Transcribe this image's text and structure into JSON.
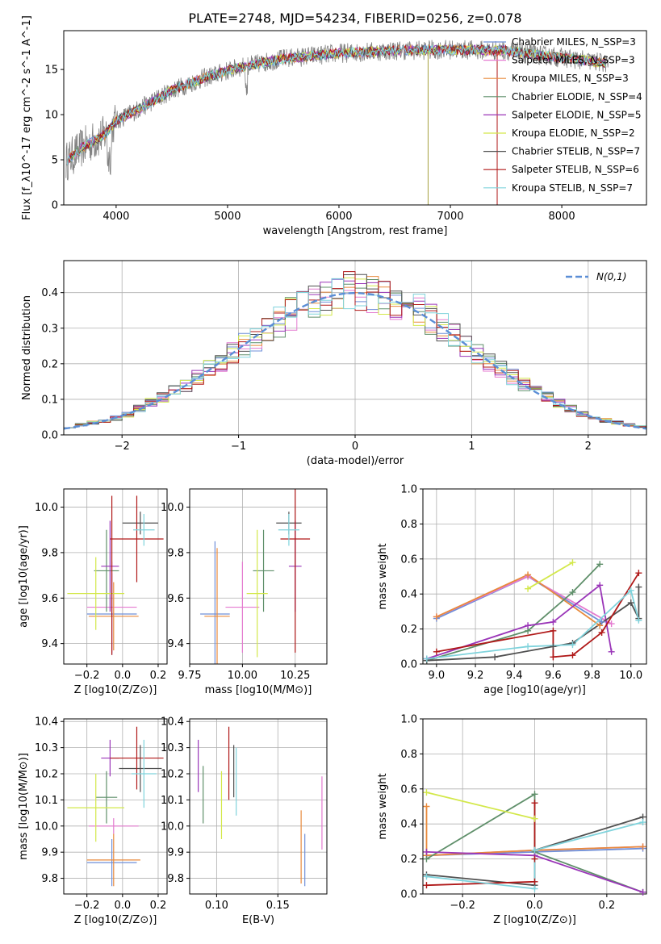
{
  "figure": {
    "title": "PLATE=2748, MJD=54234, FIBERID=0256, z=0.078"
  },
  "chart_data": [
    {
      "id": "spectrum",
      "type": "line",
      "xlabel": "wavelength [Angstrom, rest frame]",
      "ylabel": "Flux [f_λ10^-17 erg cm^-2 s^-1 A^-1]",
      "xlim": [
        3530,
        8760
      ],
      "ylim": [
        0,
        19.3
      ],
      "xticks": [
        4000,
        5000,
        6000,
        7000,
        8000
      ],
      "yticks": [
        0,
        5,
        10,
        15
      ],
      "grid": false,
      "legend_position": "right",
      "data_color": "#808080",
      "continuum": {
        "x": [
          3550,
          3700,
          3900,
          4000,
          4200,
          4500,
          4800,
          5100,
          5500,
          6000,
          6500,
          7000,
          7500,
          8000,
          8400
        ],
        "y": [
          4.8,
          6.4,
          7.8,
          9.3,
          10.6,
          12.7,
          14.1,
          15.2,
          16.2,
          16.8,
          17.1,
          17.2,
          17.1,
          16.3,
          15.7
        ]
      },
      "series": [
        {
          "name": "Chabrier MILES, N_SSP=3",
          "color": "#6f8fd8"
        },
        {
          "name": "Salpeter MILES, N_SSP=3",
          "color": "#e47ad0"
        },
        {
          "name": "Kroupa MILES, N_SSP=3",
          "color": "#e88a3c"
        },
        {
          "name": "Chabrier ELODIE, N_SSP=4",
          "color": "#5f8f6a"
        },
        {
          "name": "Salpeter ELODIE, N_SSP=5",
          "color": "#9a35b8"
        },
        {
          "name": "Kroupa ELODIE, N_SSP=2",
          "color": "#d3e84a"
        },
        {
          "name": "Chabrier STELIB, N_SSP=7",
          "color": "#505050"
        },
        {
          "name": "Salpeter STELIB, N_SSP=6",
          "color": "#b01818"
        },
        {
          "name": "Kroupa STELIB, N_SSP=7",
          "color": "#7fd3dc"
        }
      ]
    },
    {
      "id": "residuals",
      "type": "line",
      "xlabel": "(data-model)/error",
      "ylabel": "Normed distribution",
      "xlim": [
        -2.5,
        2.5
      ],
      "ylim": [
        0,
        0.49
      ],
      "xticks": [
        -2,
        -1,
        0,
        1,
        2
      ],
      "yticks": [
        0.0,
        0.1,
        0.2,
        0.3,
        0.4
      ],
      "grid": true,
      "legend_position": "top-right",
      "gaussian": {
        "name": "N(0,1)",
        "color": "#5b8ed6"
      },
      "histogram_envelope": {
        "x": [
          -2.5,
          -2.0,
          -1.5,
          -1.0,
          -0.5,
          0.0,
          0.5,
          1.0,
          1.5,
          2.0,
          2.5
        ],
        "y": [
          0.02,
          0.05,
          0.13,
          0.24,
          0.35,
          0.41,
          0.36,
          0.24,
          0.13,
          0.05,
          0.02
        ]
      }
    },
    {
      "id": "age-vs-Z",
      "type": "scatter",
      "xlabel": "Z [log10(Z/Z⊙)]",
      "ylabel": "age  [log10(age/yr)]",
      "xlim": [
        -0.33,
        0.25
      ],
      "ylim": [
        9.31,
        10.08
      ],
      "xticks": [
        -0.2,
        0.0,
        0.2
      ],
      "yticks": [
        9.4,
        9.6,
        9.8,
        10.0
      ],
      "grid": true,
      "points": [
        {
          "x": -0.06,
          "y": 9.53,
          "xerr": 0.14,
          "yerr": 0.18,
          "color": "#6f8fd8"
        },
        {
          "x": -0.06,
          "y": 9.56,
          "xerr": 0.14,
          "yerr": 0.2,
          "color": "#e47ad0"
        },
        {
          "x": -0.05,
          "y": 9.52,
          "xerr": 0.14,
          "yerr": 0.15,
          "color": "#e88a3c"
        },
        {
          "x": -0.09,
          "y": 9.72,
          "xerr": 0.07,
          "yerr": 0.18,
          "color": "#5f8f6a"
        },
        {
          "x": -0.07,
          "y": 9.74,
          "xerr": 0.05,
          "yerr": 0.2,
          "color": "#9a35b8"
        },
        {
          "x": -0.15,
          "y": 9.62,
          "xerr": 0.16,
          "yerr": 0.16,
          "color": "#d3e84a"
        },
        {
          "x": 0.1,
          "y": 9.93,
          "xerr": 0.1,
          "yerr": 0.05,
          "color": "#505050"
        },
        {
          "x": 0.08,
          "y": 9.86,
          "xerr": 0.15,
          "yerr": 0.19,
          "color": "#b01818"
        },
        {
          "x": 0.12,
          "y": 9.9,
          "xerr": 0.06,
          "yerr": 0.07,
          "color": "#7fd3dc"
        },
        {
          "x": -0.06,
          "y": 9.7,
          "xerr": 0.0,
          "yerr": 0.35,
          "color": "#b01818"
        }
      ]
    },
    {
      "id": "age-vs-mass",
      "type": "scatter",
      "xlabel": "mass [log10(M/M⊙)]",
      "ylabel": "",
      "xlim": [
        9.75,
        10.4
      ],
      "ylim": [
        9.31,
        10.08
      ],
      "xticks": [
        9.75,
        10.0,
        10.25
      ],
      "yticks": [
        9.4,
        9.6,
        9.8,
        10.0
      ],
      "grid": true,
      "points": [
        {
          "x": 9.87,
          "y": 9.53,
          "xerr": 0.07,
          "yerr": 0.32,
          "color": "#6f8fd8"
        },
        {
          "x": 10.0,
          "y": 9.56,
          "xerr": 0.08,
          "yerr": 0.2,
          "color": "#e47ad0"
        },
        {
          "x": 9.88,
          "y": 9.52,
          "xerr": 0.06,
          "yerr": 0.3,
          "color": "#e88a3c"
        },
        {
          "x": 10.1,
          "y": 9.72,
          "xerr": 0.05,
          "yerr": 0.18,
          "color": "#5f8f6a"
        },
        {
          "x": 10.25,
          "y": 9.74,
          "xerr": 0.03,
          "yerr": 0.2,
          "color": "#9a35b8"
        },
        {
          "x": 10.07,
          "y": 9.62,
          "xerr": 0.05,
          "yerr": 0.28,
          "color": "#d3e84a"
        },
        {
          "x": 10.22,
          "y": 9.93,
          "xerr": 0.06,
          "yerr": 0.05,
          "color": "#505050"
        },
        {
          "x": 10.25,
          "y": 9.86,
          "xerr": 0.07,
          "yerr": 0.5,
          "color": "#b01818"
        },
        {
          "x": 10.22,
          "y": 9.9,
          "xerr": 0.05,
          "yerr": 0.07,
          "color": "#7fd3dc"
        }
      ]
    },
    {
      "id": "weight-vs-age",
      "type": "line",
      "xlabel": "age  [log10(age/yr)]",
      "ylabel": "mass weight",
      "xlim": [
        8.93,
        10.08
      ],
      "ylim": [
        0,
        1
      ],
      "xticks": [
        9.0,
        9.2,
        9.4,
        9.6,
        9.8,
        10.0
      ],
      "yticks": [
        0.0,
        0.2,
        0.4,
        0.6,
        0.8,
        1.0
      ],
      "grid": true,
      "series": [
        {
          "color": "#6f8fd8",
          "x": [
            9.0,
            9.47,
            9.85
          ],
          "y": [
            0.26,
            0.5,
            0.24
          ]
        },
        {
          "color": "#e47ad0",
          "x": [
            9.0,
            9.47,
            9.9
          ],
          "y": [
            0.27,
            0.5,
            0.23
          ]
        },
        {
          "color": "#e88a3c",
          "x": [
            9.0,
            9.47,
            9.84
          ],
          "y": [
            0.27,
            0.51,
            0.22
          ]
        },
        {
          "color": "#5f8f6a",
          "x": [
            8.95,
            9.47,
            9.7,
            9.84
          ],
          "y": [
            0.02,
            0.19,
            0.41,
            0.57
          ]
        },
        {
          "color": "#9a35b8",
          "x": [
            8.95,
            9.47,
            9.6,
            9.84,
            9.9
          ],
          "y": [
            0.03,
            0.22,
            0.24,
            0.45,
            0.07
          ]
        },
        {
          "color": "#d3e84a",
          "x": [
            9.47,
            9.7
          ],
          "y": [
            0.43,
            0.58
          ]
        },
        {
          "color": "#505050",
          "x": [
            8.95,
            9.3,
            9.6,
            9.7,
            10.0,
            10.04,
            10.04
          ],
          "y": [
            0.02,
            0.04,
            0.1,
            0.12,
            0.35,
            0.26,
            0.44
          ]
        },
        {
          "color": "#b01818",
          "x": [
            9.0,
            9.6,
            9.6,
            9.7,
            9.85,
            10.04
          ],
          "y": [
            0.07,
            0.19,
            0.04,
            0.05,
            0.18,
            0.52
          ]
        },
        {
          "color": "#7fd3dc",
          "x": [
            8.95,
            9.47,
            9.7,
            10.0,
            10.04
          ],
          "y": [
            0.03,
            0.1,
            0.11,
            0.42,
            0.25
          ]
        }
      ]
    },
    {
      "id": "mass-vs-Z",
      "type": "scatter",
      "xlabel": "Z [log10(Z/Z⊙)]",
      "ylabel": "mass [log10(M/M⊙)]",
      "xlim": [
        -0.33,
        0.25
      ],
      "ylim": [
        9.74,
        10.41
      ],
      "xticks": [
        -0.2,
        0.0,
        0.2
      ],
      "yticks": [
        9.8,
        9.9,
        10.0,
        10.1,
        10.2,
        10.3,
        10.4
      ],
      "grid": true,
      "points": [
        {
          "x": -0.06,
          "y": 9.86,
          "xerr": 0.14,
          "yerr": 0.09,
          "color": "#6f8fd8"
        },
        {
          "x": -0.05,
          "y": 10.0,
          "xerr": 0.14,
          "yerr": 0.03,
          "color": "#e47ad0"
        },
        {
          "x": -0.05,
          "y": 9.87,
          "xerr": 0.15,
          "yerr": 0.1,
          "color": "#e88a3c"
        },
        {
          "x": -0.09,
          "y": 10.11,
          "xerr": 0.06,
          "yerr": 0.1,
          "color": "#5f8f6a"
        },
        {
          "x": -0.07,
          "y": 10.26,
          "xerr": 0.05,
          "yerr": 0.07,
          "color": "#9a35b8"
        },
        {
          "x": -0.15,
          "y": 10.07,
          "xerr": 0.16,
          "yerr": 0.13,
          "color": "#d3e84a"
        },
        {
          "x": 0.1,
          "y": 10.22,
          "xerr": 0.12,
          "yerr": 0.09,
          "color": "#505050"
        },
        {
          "x": 0.08,
          "y": 10.26,
          "xerr": 0.15,
          "yerr": 0.12,
          "color": "#b01818"
        },
        {
          "x": 0.12,
          "y": 10.2,
          "xerr": 0.07,
          "yerr": 0.13,
          "color": "#7fd3dc"
        }
      ]
    },
    {
      "id": "mass-vs-EBV",
      "type": "scatter",
      "xlabel": "E(B-V)",
      "ylabel": "",
      "xlim": [
        0.078,
        0.19
      ],
      "ylim": [
        9.74,
        10.41
      ],
      "xticks": [
        0.1,
        0.15
      ],
      "yticks": [
        9.8,
        9.9,
        10.0,
        10.1,
        10.2,
        10.3,
        10.4
      ],
      "grid": true,
      "points": [
        {
          "x": 0.172,
          "y": 9.87,
          "xerr": 0,
          "yerr": 0.1,
          "color": "#6f8fd8"
        },
        {
          "x": 0.186,
          "y": 10.05,
          "xerr": 0,
          "yerr": 0.14,
          "color": "#e47ad0"
        },
        {
          "x": 0.169,
          "y": 9.92,
          "xerr": 0,
          "yerr": 0.14,
          "color": "#e88a3c"
        },
        {
          "x": 0.089,
          "y": 10.12,
          "xerr": 0,
          "yerr": 0.11,
          "color": "#5f8f6a"
        },
        {
          "x": 0.085,
          "y": 10.23,
          "xerr": 0,
          "yerr": 0.1,
          "color": "#9a35b8"
        },
        {
          "x": 0.104,
          "y": 10.08,
          "xerr": 0,
          "yerr": 0.13,
          "color": "#d3e84a"
        },
        {
          "x": 0.114,
          "y": 10.21,
          "xerr": 0,
          "yerr": 0.1,
          "color": "#505050"
        },
        {
          "x": 0.11,
          "y": 10.24,
          "xerr": 0,
          "yerr": 0.14,
          "color": "#b01818"
        },
        {
          "x": 0.116,
          "y": 10.17,
          "xerr": 0,
          "yerr": 0.13,
          "color": "#7fd3dc"
        }
      ]
    },
    {
      "id": "weight-vs-Z",
      "type": "line",
      "xlabel": "Z [log10(Z/Z⊙)]",
      "ylabel": "mass weight",
      "xlim": [
        -0.31,
        0.31
      ],
      "ylim": [
        0,
        1
      ],
      "xticks": [
        -0.2,
        0.0,
        0.2
      ],
      "yticks": [
        0.0,
        0.2,
        0.4,
        0.6,
        0.8,
        1.0
      ],
      "grid": true,
      "series": [
        {
          "color": "#6f8fd8",
          "x": [
            -0.3,
            0.0,
            0.3
          ],
          "y": [
            0.22,
            0.24,
            0.26
          ]
        },
        {
          "color": "#e47ad0",
          "x": [
            -0.3,
            0.0,
            0.3
          ],
          "y": [
            0.22,
            0.25,
            0.27
          ]
        },
        {
          "color": "#e88a3c",
          "x": [
            -0.3,
            -0.3,
            0.0,
            0.3
          ],
          "y": [
            0.5,
            0.22,
            0.25,
            0.27
          ]
        },
        {
          "color": "#5f8f6a",
          "x": [
            -0.3,
            0.0,
            0.0,
            0.3
          ],
          "y": [
            0.2,
            0.57,
            0.24,
            0.01
          ]
        },
        {
          "color": "#9a35b8",
          "x": [
            -0.3,
            0.0,
            0.3
          ],
          "y": [
            0.24,
            0.22,
            0.01
          ]
        },
        {
          "color": "#d3e84a",
          "x": [
            -0.3,
            0.0
          ],
          "y": [
            0.58,
            0.43
          ]
        },
        {
          "color": "#505050",
          "x": [
            -0.3,
            0.0,
            0.0,
            0.3
          ],
          "y": [
            0.11,
            0.05,
            0.25,
            0.44
          ]
        },
        {
          "color": "#b01818",
          "x": [
            -0.3,
            0.0,
            0.0,
            0.0
          ],
          "y": [
            0.05,
            0.07,
            0.52,
            0.2
          ]
        },
        {
          "color": "#7fd3dc",
          "x": [
            -0.3,
            0.0,
            0.0,
            0.3
          ],
          "y": [
            0.1,
            0.03,
            0.25,
            0.41
          ]
        }
      ]
    }
  ]
}
